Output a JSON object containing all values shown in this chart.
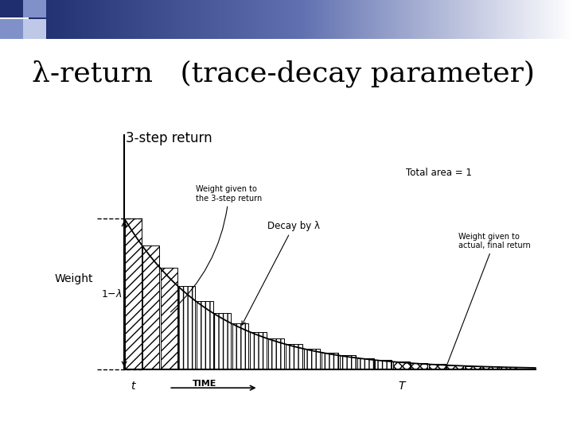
{
  "title": "λ-return   (trace-decay parameter)",
  "title_fontsize": 26,
  "title_color": "#000000",
  "background_color": "#ffffff",
  "lambda": 0.82,
  "n_steps": 22,
  "T_step": 15,
  "highlight_step": 3,
  "weight_label": "Weight",
  "time_label": "TIME →",
  "y_label_1minus_lambda": "1−λ",
  "text_3step": "3-step return",
  "text_weight_given": "Weight given to\nthe 3-step return",
  "text_decay": "Decay by λ",
  "text_total_area": "Total area = 1",
  "text_final_weight": "Weight given to\nactual, final return",
  "header_dark": "#1e2e6e",
  "header_mid": "#6070b0",
  "header_light": "#c0c8e8"
}
